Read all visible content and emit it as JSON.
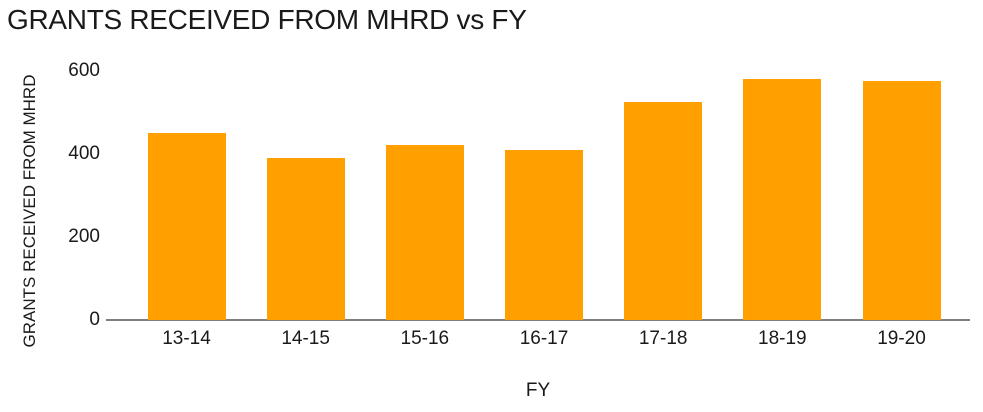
{
  "chart_data": {
    "type": "bar",
    "title": "GRANTS RECEIVED FROM MHRD vs FY",
    "categories": [
      "13-14",
      "14-15",
      "15-16",
      "16-17",
      "17-18",
      "18-19",
      "19-20"
    ],
    "values": [
      450,
      390,
      420,
      410,
      525,
      580,
      575
    ],
    "xlabel": "FY",
    "ylabel": "GRANTS RECEIVED FROM MHRD",
    "ylim": [
      0,
      600
    ],
    "yticks": [
      0,
      200,
      400,
      600
    ],
    "grid": false,
    "legend": false,
    "bar_color": "#FFA000",
    "axis_line_color": "#7F7F7F",
    "text_color": "#1A1A1A"
  }
}
